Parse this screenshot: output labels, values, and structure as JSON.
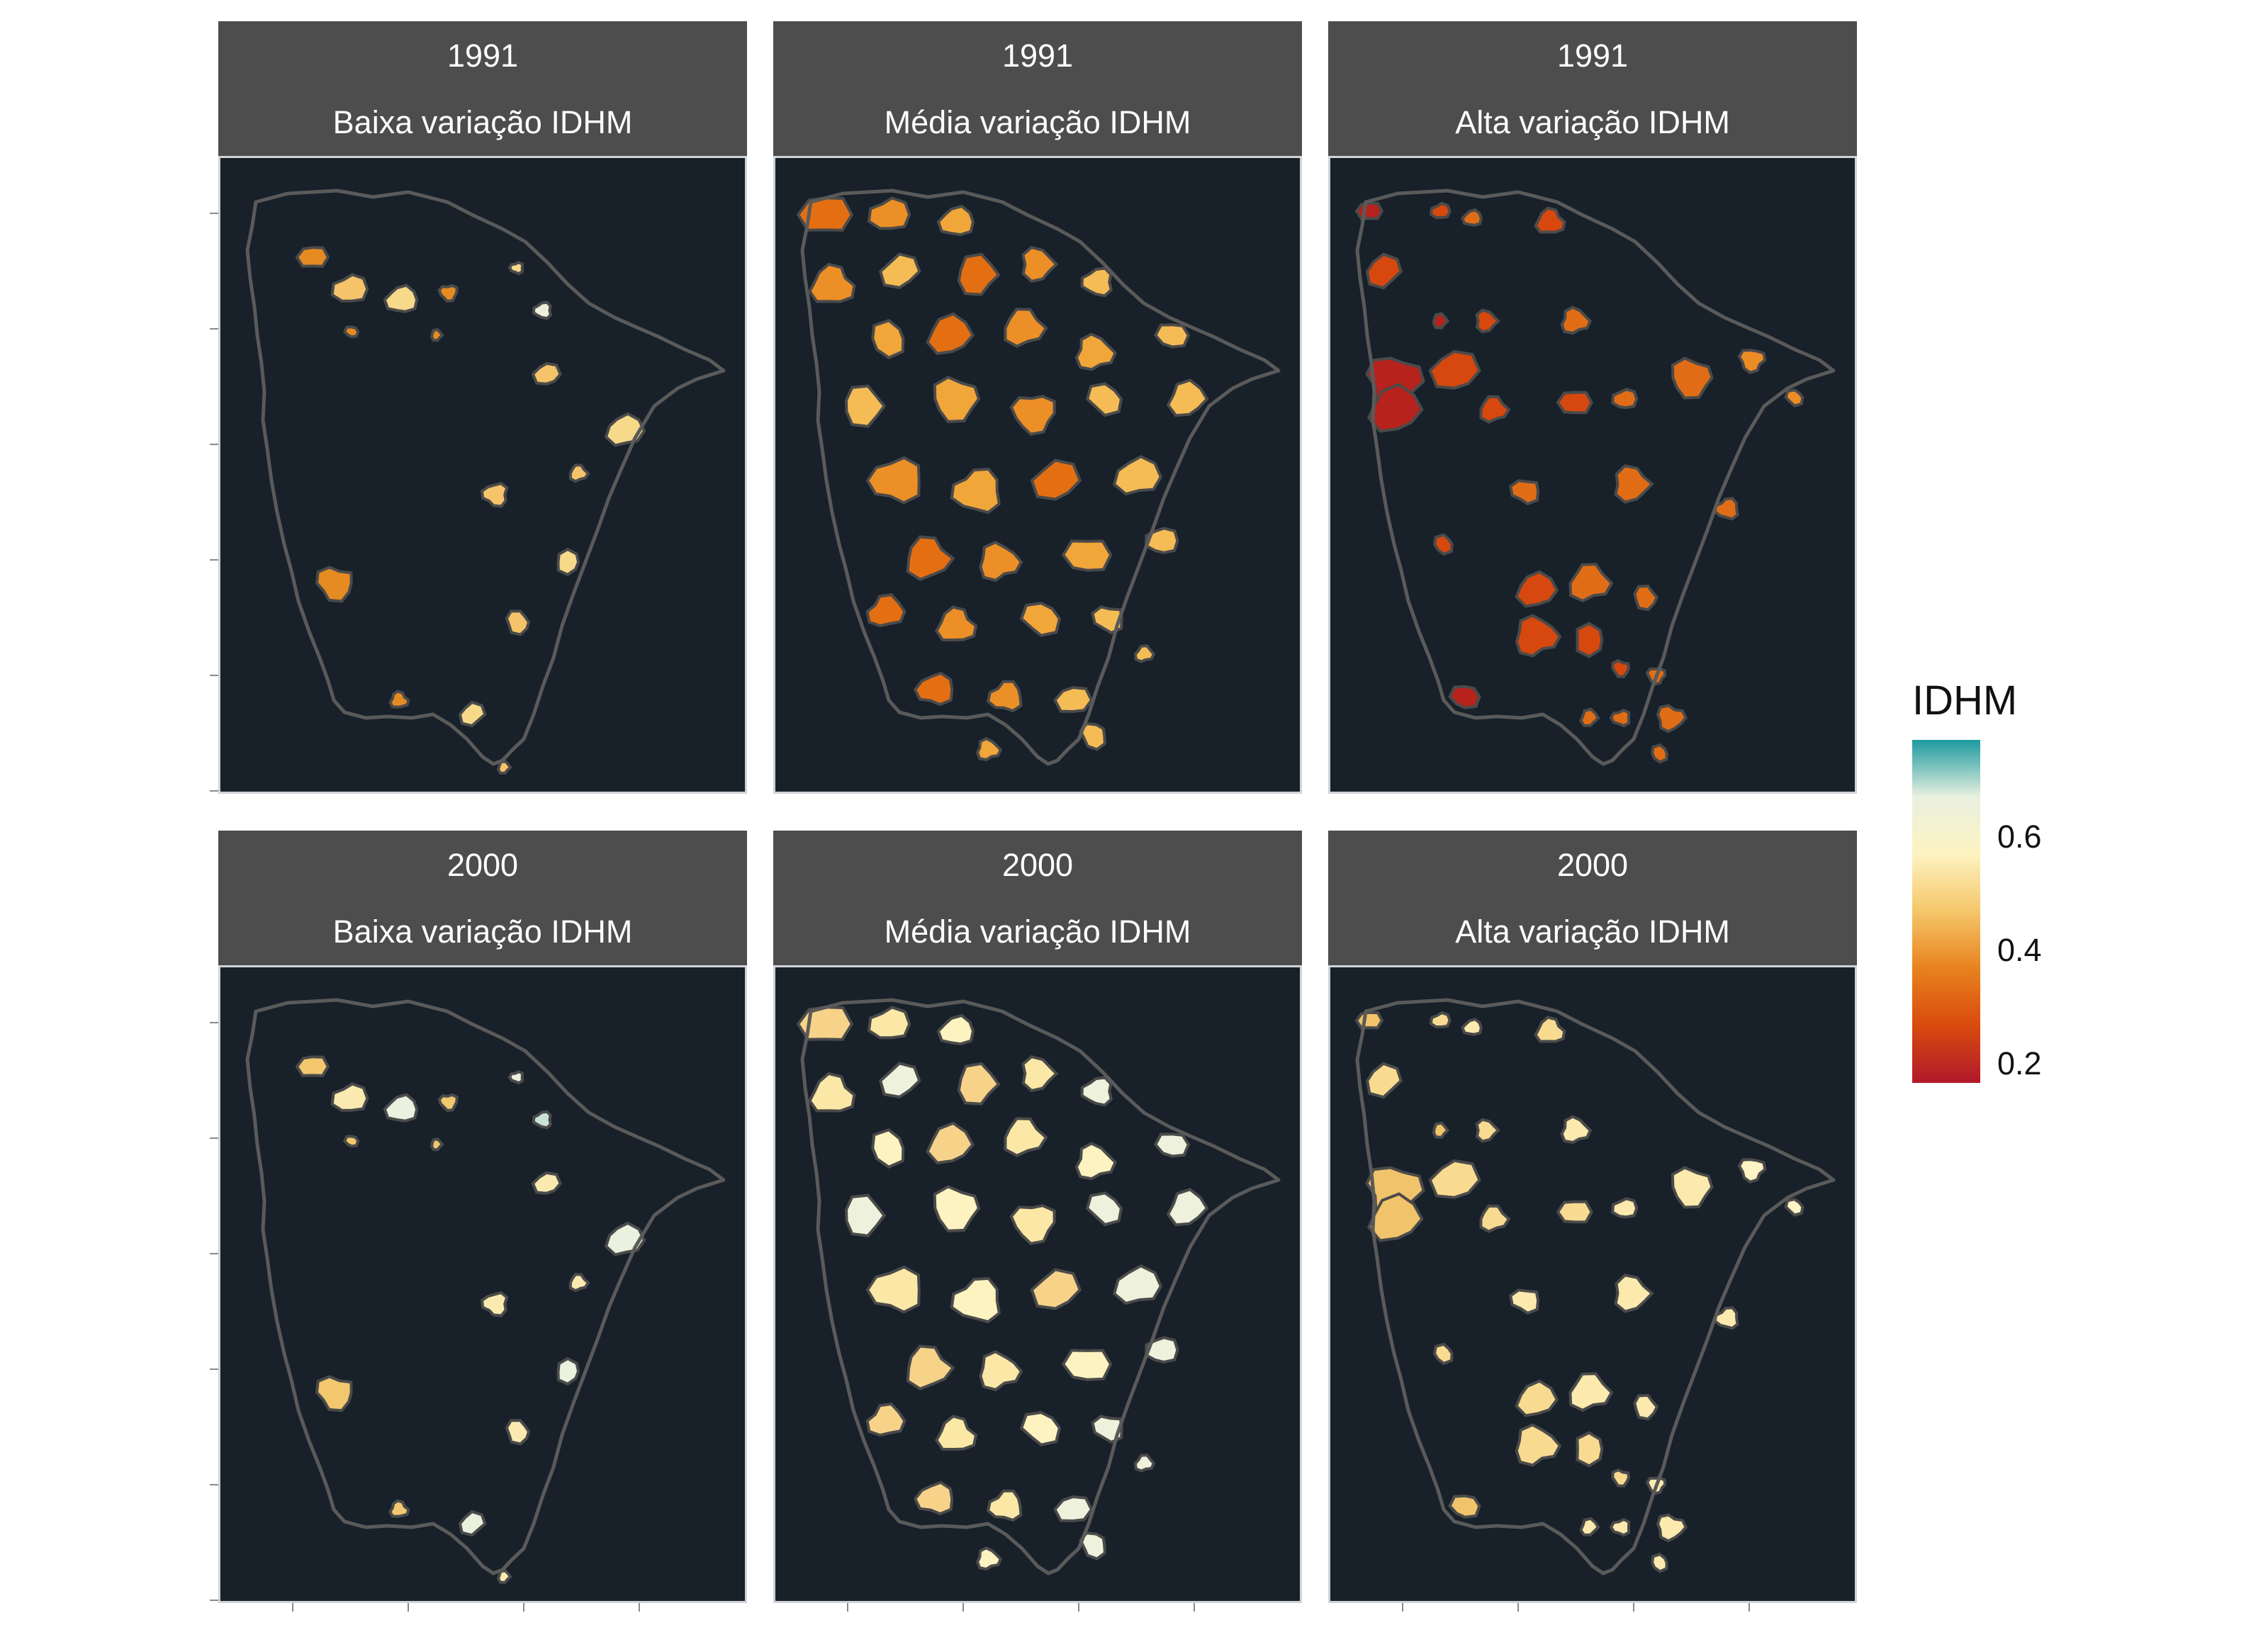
{
  "figure": {
    "panels": [
      {
        "year": "1991",
        "group": "Baixa variação IDHM",
        "palette": "baixa1991"
      },
      {
        "year": "1991",
        "group": "Média variação IDHM",
        "palette": "media1991"
      },
      {
        "year": "1991",
        "group": "Alta variação IDHM",
        "palette": "alta1991"
      },
      {
        "year": "2000",
        "group": "Baixa variação IDHM",
        "palette": "baixa2000"
      },
      {
        "year": "2000",
        "group": "Média variação IDHM",
        "palette": "media2000"
      },
      {
        "year": "2000",
        "group": "Alta variação IDHM",
        "palette": "alta2000"
      }
    ],
    "legend": {
      "title": "IDHM",
      "labels": [
        "0.6",
        "0.4",
        "0.2"
      ],
      "colors": [
        "#1c9aa0",
        "#e9f0e0",
        "#fdf3c0",
        "#f5c66a",
        "#e8821e",
        "#d94a0e",
        "#b2182b"
      ]
    },
    "panel_background": "#18202a",
    "strip_background": "#4d4d4d"
  }
}
